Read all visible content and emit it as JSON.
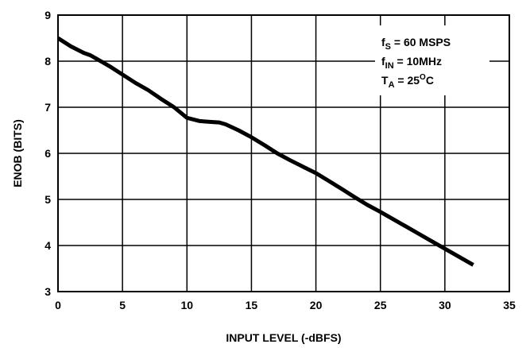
{
  "chart_data": {
    "type": "line",
    "title": "",
    "xlabel": "INPUT LEVEL (-dBFS)",
    "ylabel": "ENOB (BITS)",
    "xlim": [
      0,
      35
    ],
    "ylim": [
      3,
      9
    ],
    "x_ticks": [
      "0",
      "5",
      "10",
      "15",
      "20",
      "25",
      "30",
      "35"
    ],
    "y_ticks": [
      "3",
      "4",
      "5",
      "6",
      "7",
      "8",
      "9"
    ],
    "grid": true,
    "legend": "none",
    "series": [
      {
        "color": "#000000",
        "x": [
          0,
          1,
          2,
          2.5,
          3,
          4,
          5,
          6,
          7,
          8,
          9,
          10,
          11,
          12,
          12.5,
          13,
          14,
          15,
          16,
          17,
          18,
          19,
          20,
          21,
          22,
          23,
          24,
          25,
          26,
          27,
          28,
          29,
          30,
          31,
          32.2
        ],
        "y": [
          8.5,
          8.32,
          8.18,
          8.13,
          8.05,
          7.89,
          7.71,
          7.53,
          7.37,
          7.18,
          7.0,
          6.77,
          6.7,
          6.68,
          6.67,
          6.63,
          6.5,
          6.35,
          6.18,
          6.0,
          5.85,
          5.71,
          5.57,
          5.4,
          5.23,
          5.05,
          4.88,
          4.73,
          4.57,
          4.41,
          4.25,
          4.09,
          3.93,
          3.77,
          3.58
        ]
      }
    ],
    "annotations": [
      {
        "base": "f",
        "sub": "S",
        "sup": "",
        "text": " = 60 MSPS"
      },
      {
        "base": "f",
        "sub": "IN",
        "sup": "",
        "text": " = 10MHz"
      },
      {
        "base": "T",
        "sub": "A",
        "sup": "",
        "text": " = 25"
      },
      {
        "base": "",
        "sub": "",
        "sup": "O",
        "text": "C"
      }
    ]
  }
}
